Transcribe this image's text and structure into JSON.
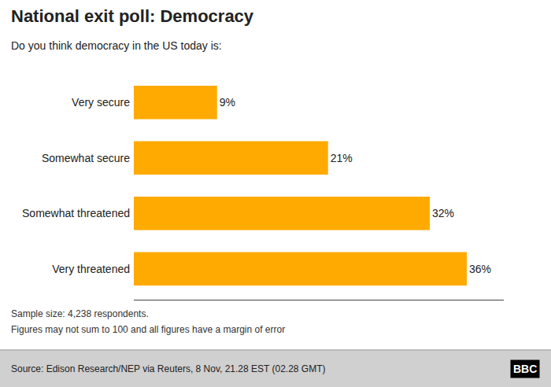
{
  "chart_data": {
    "type": "bar",
    "orientation": "horizontal",
    "title": "National exit poll: Democracy",
    "subtitle": "Do you think democracy in the US today is:",
    "categories": [
      "Very secure",
      "Somewhat secure",
      "Somewhat threatened",
      "Very threatened"
    ],
    "values": [
      9,
      21,
      32,
      36
    ],
    "value_labels": [
      "9%",
      "21%",
      "32%",
      "36%"
    ],
    "data_labels": true,
    "color": "#FFAA00",
    "xlim": [
      0,
      40
    ],
    "tick_labels": "y",
    "grid": false,
    "annotations": [
      "Sample size: 4,238 respondents.",
      "Figures may not sum to 100 and all figures have a margin of error",
      "Source: Edison Research/NEP via Reuters, 8 Nov, 21.28 EST (02.28 GMT)",
      "BBC"
    ]
  }
}
